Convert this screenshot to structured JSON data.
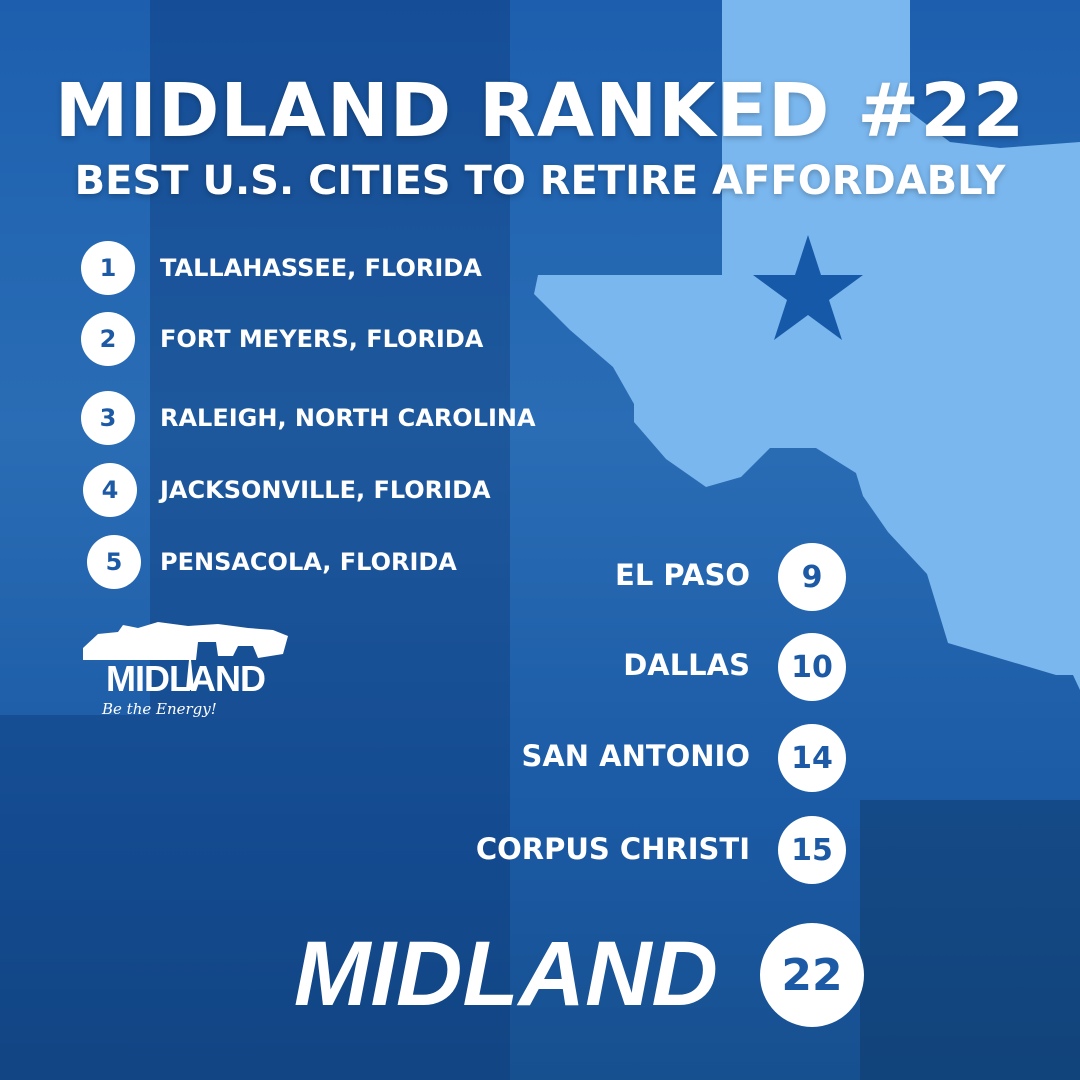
{
  "title": "MIDLAND RANKED #22",
  "subtitle": "BEST U.S. CITIES TO RETIRE AFFORDABLY",
  "top_list": [
    {
      "rank": "1",
      "city": "TALLAHASSEE, FLORIDA"
    },
    {
      "rank": "2",
      "city": "FORT MEYERS, FLORIDA"
    },
    {
      "rank": "3",
      "city": "RALEIGH, NORTH CAROLINA"
    },
    {
      "rank": "4",
      "city": "JACKSONVILLE, FLORIDA"
    },
    {
      "rank": "5",
      "city": "PENSACOLA, FLORIDA"
    }
  ],
  "texas_list": [
    {
      "rank": "9",
      "city": "EL PASO"
    },
    {
      "rank": "10",
      "city": "DALLAS"
    },
    {
      "rank": "14",
      "city": "SAN ANTONIO"
    },
    {
      "rank": "15",
      "city": "CORPUS CHRISTI"
    }
  ],
  "highlight": {
    "city": "MIDLAND",
    "rank": "22"
  },
  "logo": {
    "name": "MIDLAND",
    "tagline": "Be the Energy!"
  },
  "colors": {
    "background": "#1f62ae",
    "texas": "#7ab7ee",
    "star": "#1659a8",
    "rank_text": "#1d5aa6"
  }
}
